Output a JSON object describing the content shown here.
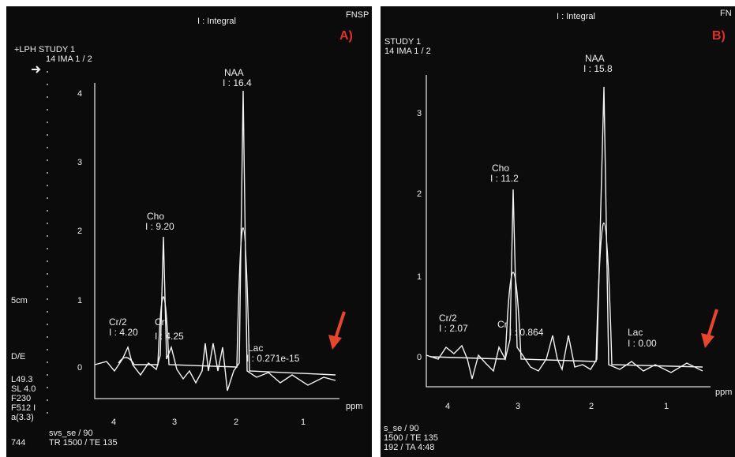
{
  "panels": [
    {
      "header": "I : Integral",
      "vendor": "FNSP",
      "tag": "A)",
      "study": "+LPH STUDY 1",
      "image": "14 IMA 1 / 2",
      "yticks": [
        "4",
        "3",
        "2",
        "1",
        "0"
      ],
      "xticks": [
        "4",
        "3",
        "2",
        "1"
      ],
      "xlabel": "ppm",
      "peaks": [
        {
          "name": "NAA",
          "integral": "I : 16.4"
        },
        {
          "name": "Cho",
          "integral": "I : 9.20"
        },
        {
          "name": "Cr/2",
          "integral": "I : 4.20"
        },
        {
          "name": "Cr",
          "integral": "I : 4.25"
        },
        {
          "name": "Lac",
          "integral": "I : 0.271e-15"
        }
      ],
      "side": [
        "5cm",
        "D/E",
        "L49.3",
        "SL 4.0",
        "F230",
        "F512 I",
        "a(3.3)"
      ],
      "footer": [
        "svs_se / 90",
        "TR 1500 / TE 135",
        "744"
      ]
    },
    {
      "header": "I : Integral",
      "vendor": "FN",
      "tag": "B)",
      "study": "STUDY 1",
      "image": "14 IMA 1 / 2",
      "yticks": [
        "3",
        "2",
        "1",
        "0"
      ],
      "xticks": [
        "4",
        "3",
        "2",
        "1"
      ],
      "xlabel": "ppm",
      "peaks": [
        {
          "name": "NAA",
          "integral": "I : 15.8"
        },
        {
          "name": "Cho",
          "integral": "I : 11.2"
        },
        {
          "name": "Cr/2",
          "integral": "I : 2.07"
        },
        {
          "name": "Cr",
          "integral": "I : 0.864"
        },
        {
          "name": "Lac",
          "integral": "I : 0.00"
        }
      ],
      "side": [],
      "footer": [
        "s_se / 90",
        "1500 / TE 135",
        "192 / TA 4:48"
      ]
    }
  ]
}
